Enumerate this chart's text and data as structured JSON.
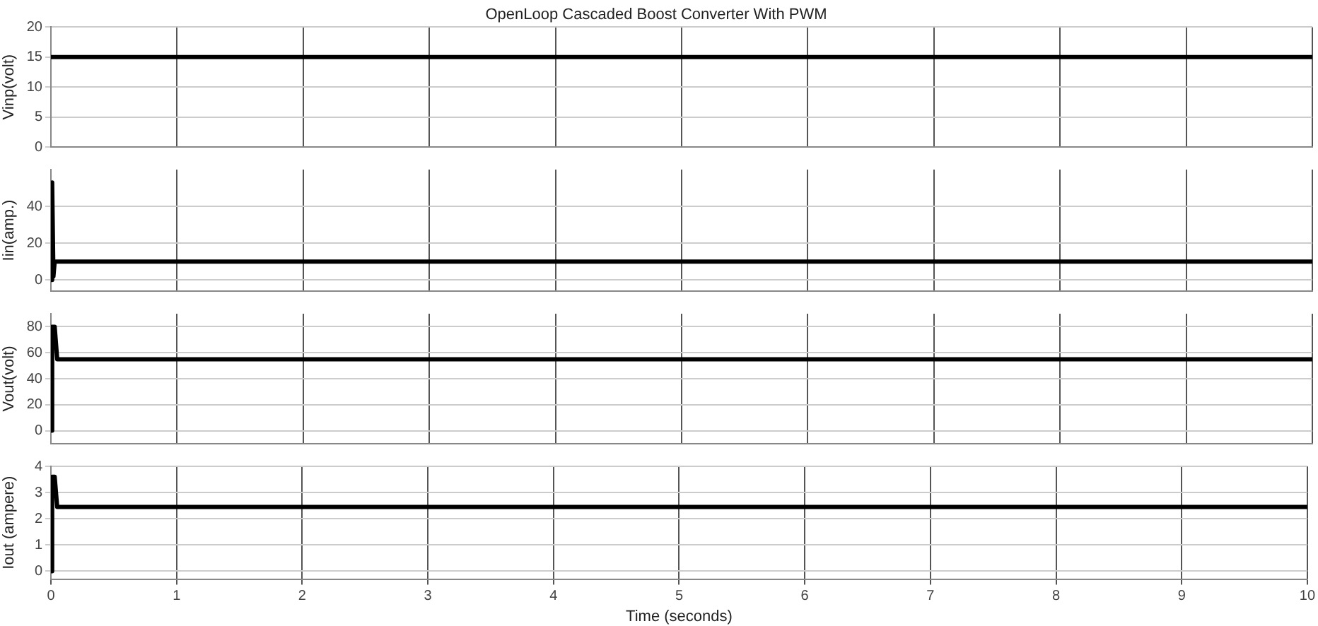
{
  "chart_data": [
    {
      "type": "line",
      "title": "OpenLoop Cascaded Boost Converter With PWM",
      "ylabel": "Vinp(volt)",
      "xlim": [
        0,
        10
      ],
      "xticks": [
        0,
        1,
        2,
        3,
        4,
        5,
        6,
        7,
        8,
        9,
        10
      ],
      "ylim": [
        0,
        20
      ],
      "yticks": [
        0,
        5,
        10,
        15,
        20
      ],
      "grid": true,
      "legend": false,
      "tick_labels": "y",
      "series": [
        {
          "color": "#000000",
          "x": [
            0,
            10
          ],
          "values": [
            15,
            15
          ]
        }
      ]
    },
    {
      "type": "line",
      "ylabel": "Iin(amp.)",
      "xlim": [
        0,
        10
      ],
      "xticks": [
        0,
        1,
        2,
        3,
        4,
        5,
        6,
        7,
        8,
        9,
        10
      ],
      "ylim": [
        -6,
        60
      ],
      "yticks": [
        0,
        20,
        40
      ],
      "grid": true,
      "legend": false,
      "tick_labels": "y",
      "series": [
        {
          "color": "#000000",
          "x": [
            0,
            0.01,
            0.02,
            0.03,
            10
          ],
          "values": [
            0,
            53,
            2,
            10,
            10
          ]
        }
      ]
    },
    {
      "type": "line",
      "ylabel": "Vout(volt)",
      "xlim": [
        0,
        10
      ],
      "xticks": [
        0,
        1,
        2,
        3,
        4,
        5,
        6,
        7,
        8,
        9,
        10
      ],
      "ylim": [
        -10,
        90
      ],
      "yticks": [
        0,
        20,
        40,
        60,
        80
      ],
      "grid": true,
      "legend": false,
      "tick_labels": "y",
      "series": [
        {
          "color": "#000000",
          "x": [
            0,
            0.01,
            0.03,
            0.05,
            10
          ],
          "values": [
            0,
            80,
            80,
            55,
            55
          ]
        }
      ]
    },
    {
      "type": "line",
      "ylabel": "Iout (ampere)",
      "xlabel": "Time (seconds)",
      "xlim": [
        0,
        10
      ],
      "xticks": [
        0,
        1,
        2,
        3,
        4,
        5,
        6,
        7,
        8,
        9,
        10
      ],
      "ylim": [
        -0.3,
        4
      ],
      "yticks": [
        0,
        1,
        2,
        3,
        4
      ],
      "grid": true,
      "legend": false,
      "series": [
        {
          "color": "#000000",
          "x": [
            0,
            0.01,
            0.03,
            0.05,
            10
          ],
          "values": [
            0,
            3.6,
            3.6,
            2.45,
            2.45
          ]
        }
      ]
    }
  ]
}
